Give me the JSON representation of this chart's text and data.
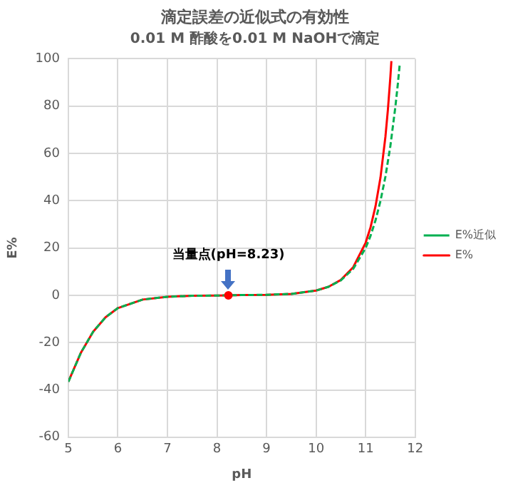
{
  "chart_data": {
    "type": "line",
    "title": "滴定誤差の近似式の有効性",
    "subtitle": "0.01 M 酢酸を0.01 M NaOHで滴定",
    "xlabel": "pH",
    "ylabel": "E%",
    "xlim": [
      5,
      12
    ],
    "xticks": [
      5,
      6,
      7,
      8,
      9,
      10,
      11,
      12
    ],
    "ylim": [
      -60,
      100
    ],
    "yticks": [
      -60,
      -40,
      -20,
      0,
      20,
      40,
      60,
      80,
      100
    ],
    "grid": true,
    "legend": "right",
    "marker": "none",
    "series": [
      {
        "name": "E%",
        "color": "#ff0000",
        "line_style": "solid",
        "x": [
          5,
          5.25,
          5.5,
          5.75,
          6,
          6.5,
          7,
          7.5,
          8,
          8.23,
          8.5,
          9,
          9.5,
          10,
          10.25,
          10.5,
          10.75,
          11,
          11.1,
          11.2,
          11.3,
          11.4,
          11.45,
          11.5,
          11.52
        ],
        "values": [
          -36.5,
          -24.4,
          -15.4,
          -9.3,
          -5.4,
          -1.8,
          -0.6,
          -0.2,
          -0.1,
          0,
          0.1,
          0.2,
          0.6,
          2.0,
          3.6,
          6.5,
          11.9,
          22.2,
          28.8,
          37.7,
          49.8,
          67.1,
          78.5,
          92.5,
          99.0
        ]
      },
      {
        "name": "E%近似",
        "color": "#00b050",
        "line_style": "dashed",
        "x": [
          5,
          5.25,
          5.5,
          5.75,
          6,
          6.5,
          7,
          7.5,
          8,
          8.23,
          8.5,
          9,
          9.5,
          10,
          10.25,
          10.5,
          10.75,
          11,
          11.1,
          11.2,
          11.3,
          11.4,
          11.5,
          11.6,
          11.65,
          11.69
        ],
        "values": [
          -36.6,
          -24.4,
          -15.4,
          -9.3,
          -5.4,
          -1.8,
          -0.6,
          -0.2,
          -0.1,
          0,
          0.1,
          0.2,
          0.6,
          2.0,
          3.6,
          6.3,
          11.2,
          20,
          25.2,
          31.7,
          39.9,
          50.2,
          63.2,
          79.6,
          89.3,
          98.0
        ]
      },
      {
        "type": "scatter",
        "marker": "circle",
        "color": "#ff0000",
        "x": [
          8.23
        ],
        "values": [
          0
        ]
      }
    ],
    "annotations": [
      {
        "text": "当量点(pH=8.23)",
        "x": 8.23,
        "y": 0
      }
    ]
  }
}
